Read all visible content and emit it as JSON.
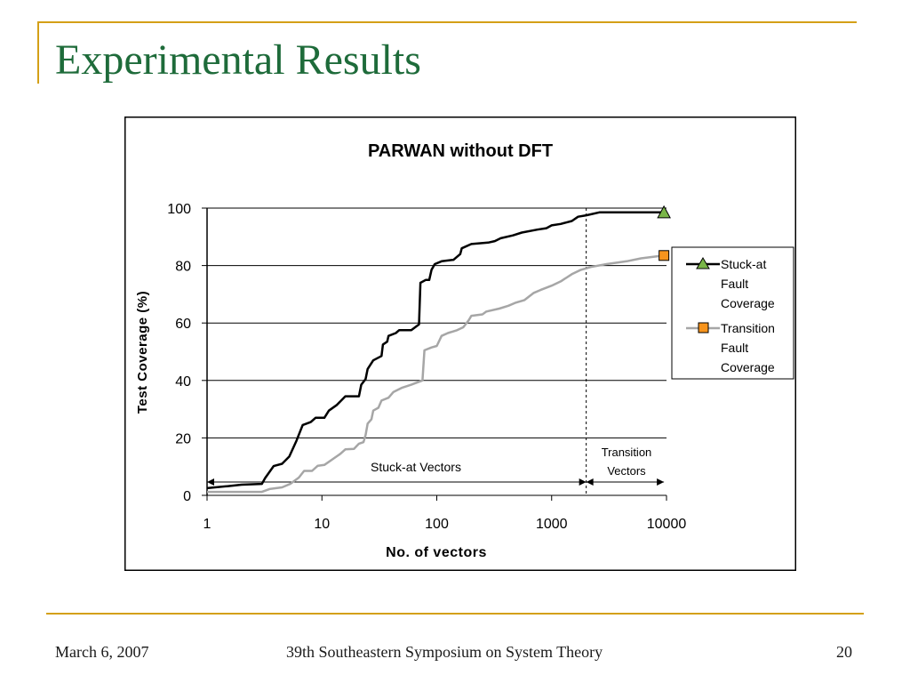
{
  "slide": {
    "title": "Experimental Results",
    "footer_date": "March 6, 2007",
    "footer_conference": "39th Southeastern Symposium on System Theory",
    "page_number": "20"
  },
  "chart_data": {
    "type": "line",
    "title": "PARWAN without DFT",
    "xlabel": "No. of vectors",
    "ylabel": "Test Coverage (%)",
    "x_scale": "log",
    "xlim": [
      1,
      10000
    ],
    "ylim": [
      0,
      100
    ],
    "x_ticks": [
      1,
      10,
      100,
      1000,
      10000
    ],
    "x_tick_labels": [
      "1",
      "10",
      "100",
      "1000",
      "10000"
    ],
    "y_ticks": [
      0,
      20,
      40,
      60,
      80,
      100
    ],
    "y_tick_labels": [
      "0",
      "20",
      "40",
      "60",
      "80",
      "100"
    ],
    "grid": "horizontal",
    "legend_position": "right",
    "series": [
      {
        "name": "Stuck-at Fault Coverage",
        "color": "#000000",
        "marker": "triangle",
        "marker_color": "#7ab648",
        "points": [
          [
            1,
            2.5
          ],
          [
            1.5,
            3.2
          ],
          [
            2,
            3.7
          ],
          [
            3,
            4
          ],
          [
            3.2,
            6
          ],
          [
            3.8,
            10.2
          ],
          [
            4.5,
            11
          ],
          [
            5.2,
            13.5
          ],
          [
            6,
            19
          ],
          [
            6.8,
            24.5
          ],
          [
            8,
            25.5
          ],
          [
            8.8,
            27
          ],
          [
            10.5,
            27
          ],
          [
            11.5,
            29.5
          ],
          [
            13.5,
            31.5
          ],
          [
            16,
            34.5
          ],
          [
            21,
            34.5
          ],
          [
            22,
            38.5
          ],
          [
            24,
            40.5
          ],
          [
            25,
            44
          ],
          [
            28,
            47
          ],
          [
            33,
            48.5
          ],
          [
            34,
            52.5
          ],
          [
            37,
            53.5
          ],
          [
            38,
            55.5
          ],
          [
            44,
            56.5
          ],
          [
            47,
            57.5
          ],
          [
            60,
            57.5
          ],
          [
            70,
            59.5
          ],
          [
            72,
            74
          ],
          [
            80,
            75
          ],
          [
            86,
            75
          ],
          [
            90,
            78.5
          ],
          [
            96,
            80.5
          ],
          [
            110,
            81.5
          ],
          [
            140,
            82
          ],
          [
            160,
            84
          ],
          [
            165,
            86
          ],
          [
            200,
            87.5
          ],
          [
            280,
            88
          ],
          [
            320,
            88.5
          ],
          [
            360,
            89.5
          ],
          [
            460,
            90.5
          ],
          [
            550,
            91.5
          ],
          [
            750,
            92.5
          ],
          [
            900,
            93
          ],
          [
            1000,
            94
          ],
          [
            1200,
            94.5
          ],
          [
            1500,
            95.5
          ],
          [
            1700,
            97
          ],
          [
            2000,
            97.5
          ],
          [
            2600,
            98.5
          ],
          [
            5000,
            98.5
          ],
          [
            9500,
            98.5
          ]
        ]
      },
      {
        "name": "Transition Fault Coverage",
        "color": "#a6a6a6",
        "marker": "square",
        "marker_color": "#f7941d",
        "points": [
          [
            1,
            1.2
          ],
          [
            3,
            1.2
          ],
          [
            3.5,
            2.2
          ],
          [
            4.5,
            2.8
          ],
          [
            5.3,
            4
          ],
          [
            6.3,
            6.2
          ],
          [
            7,
            8.5
          ],
          [
            8.2,
            8.5
          ],
          [
            9.2,
            10.3
          ],
          [
            10.5,
            10.6
          ],
          [
            12.5,
            12.7
          ],
          [
            14.5,
            14.5
          ],
          [
            16,
            16
          ],
          [
            19,
            16.2
          ],
          [
            21,
            18
          ],
          [
            23,
            18.5
          ],
          [
            24,
            21
          ],
          [
            25,
            25
          ],
          [
            27,
            26.5
          ],
          [
            28,
            29.5
          ],
          [
            31,
            30.5
          ],
          [
            33,
            33
          ],
          [
            38,
            34
          ],
          [
            42,
            36
          ],
          [
            50,
            37.5
          ],
          [
            60,
            38.5
          ],
          [
            75,
            40
          ],
          [
            78,
            50.5
          ],
          [
            90,
            51.5
          ],
          [
            100,
            52
          ],
          [
            110,
            55.5
          ],
          [
            125,
            56.5
          ],
          [
            150,
            57.5
          ],
          [
            170,
            58.5
          ],
          [
            190,
            61
          ],
          [
            200,
            62.5
          ],
          [
            250,
            63
          ],
          [
            270,
            64
          ],
          [
            350,
            65
          ],
          [
            420,
            66
          ],
          [
            480,
            67
          ],
          [
            580,
            68
          ],
          [
            700,
            70.5
          ],
          [
            800,
            71.5
          ],
          [
            1000,
            73
          ],
          [
            1200,
            74.5
          ],
          [
            1500,
            77
          ],
          [
            1800,
            78.5
          ],
          [
            2200,
            79.5
          ],
          [
            3000,
            80.5
          ],
          [
            4500,
            81.5
          ],
          [
            6000,
            82.5
          ],
          [
            9500,
            83.5
          ]
        ]
      }
    ],
    "annotations": {
      "divider_x": 2000,
      "region_1_label": "Stuck-at Vectors",
      "region_1_range": [
        1,
        2000
      ],
      "region_2_label_line1": "Transition",
      "region_2_label_line2": "Vectors",
      "region_2_range": [
        2000,
        9500
      ]
    },
    "legend": {
      "stuck_line1": "Stuck-at",
      "stuck_line2": "Fault",
      "stuck_line3": "Coverage",
      "trans_line1": "Transition",
      "trans_line2": "Fault",
      "trans_line3": "Coverage"
    }
  }
}
